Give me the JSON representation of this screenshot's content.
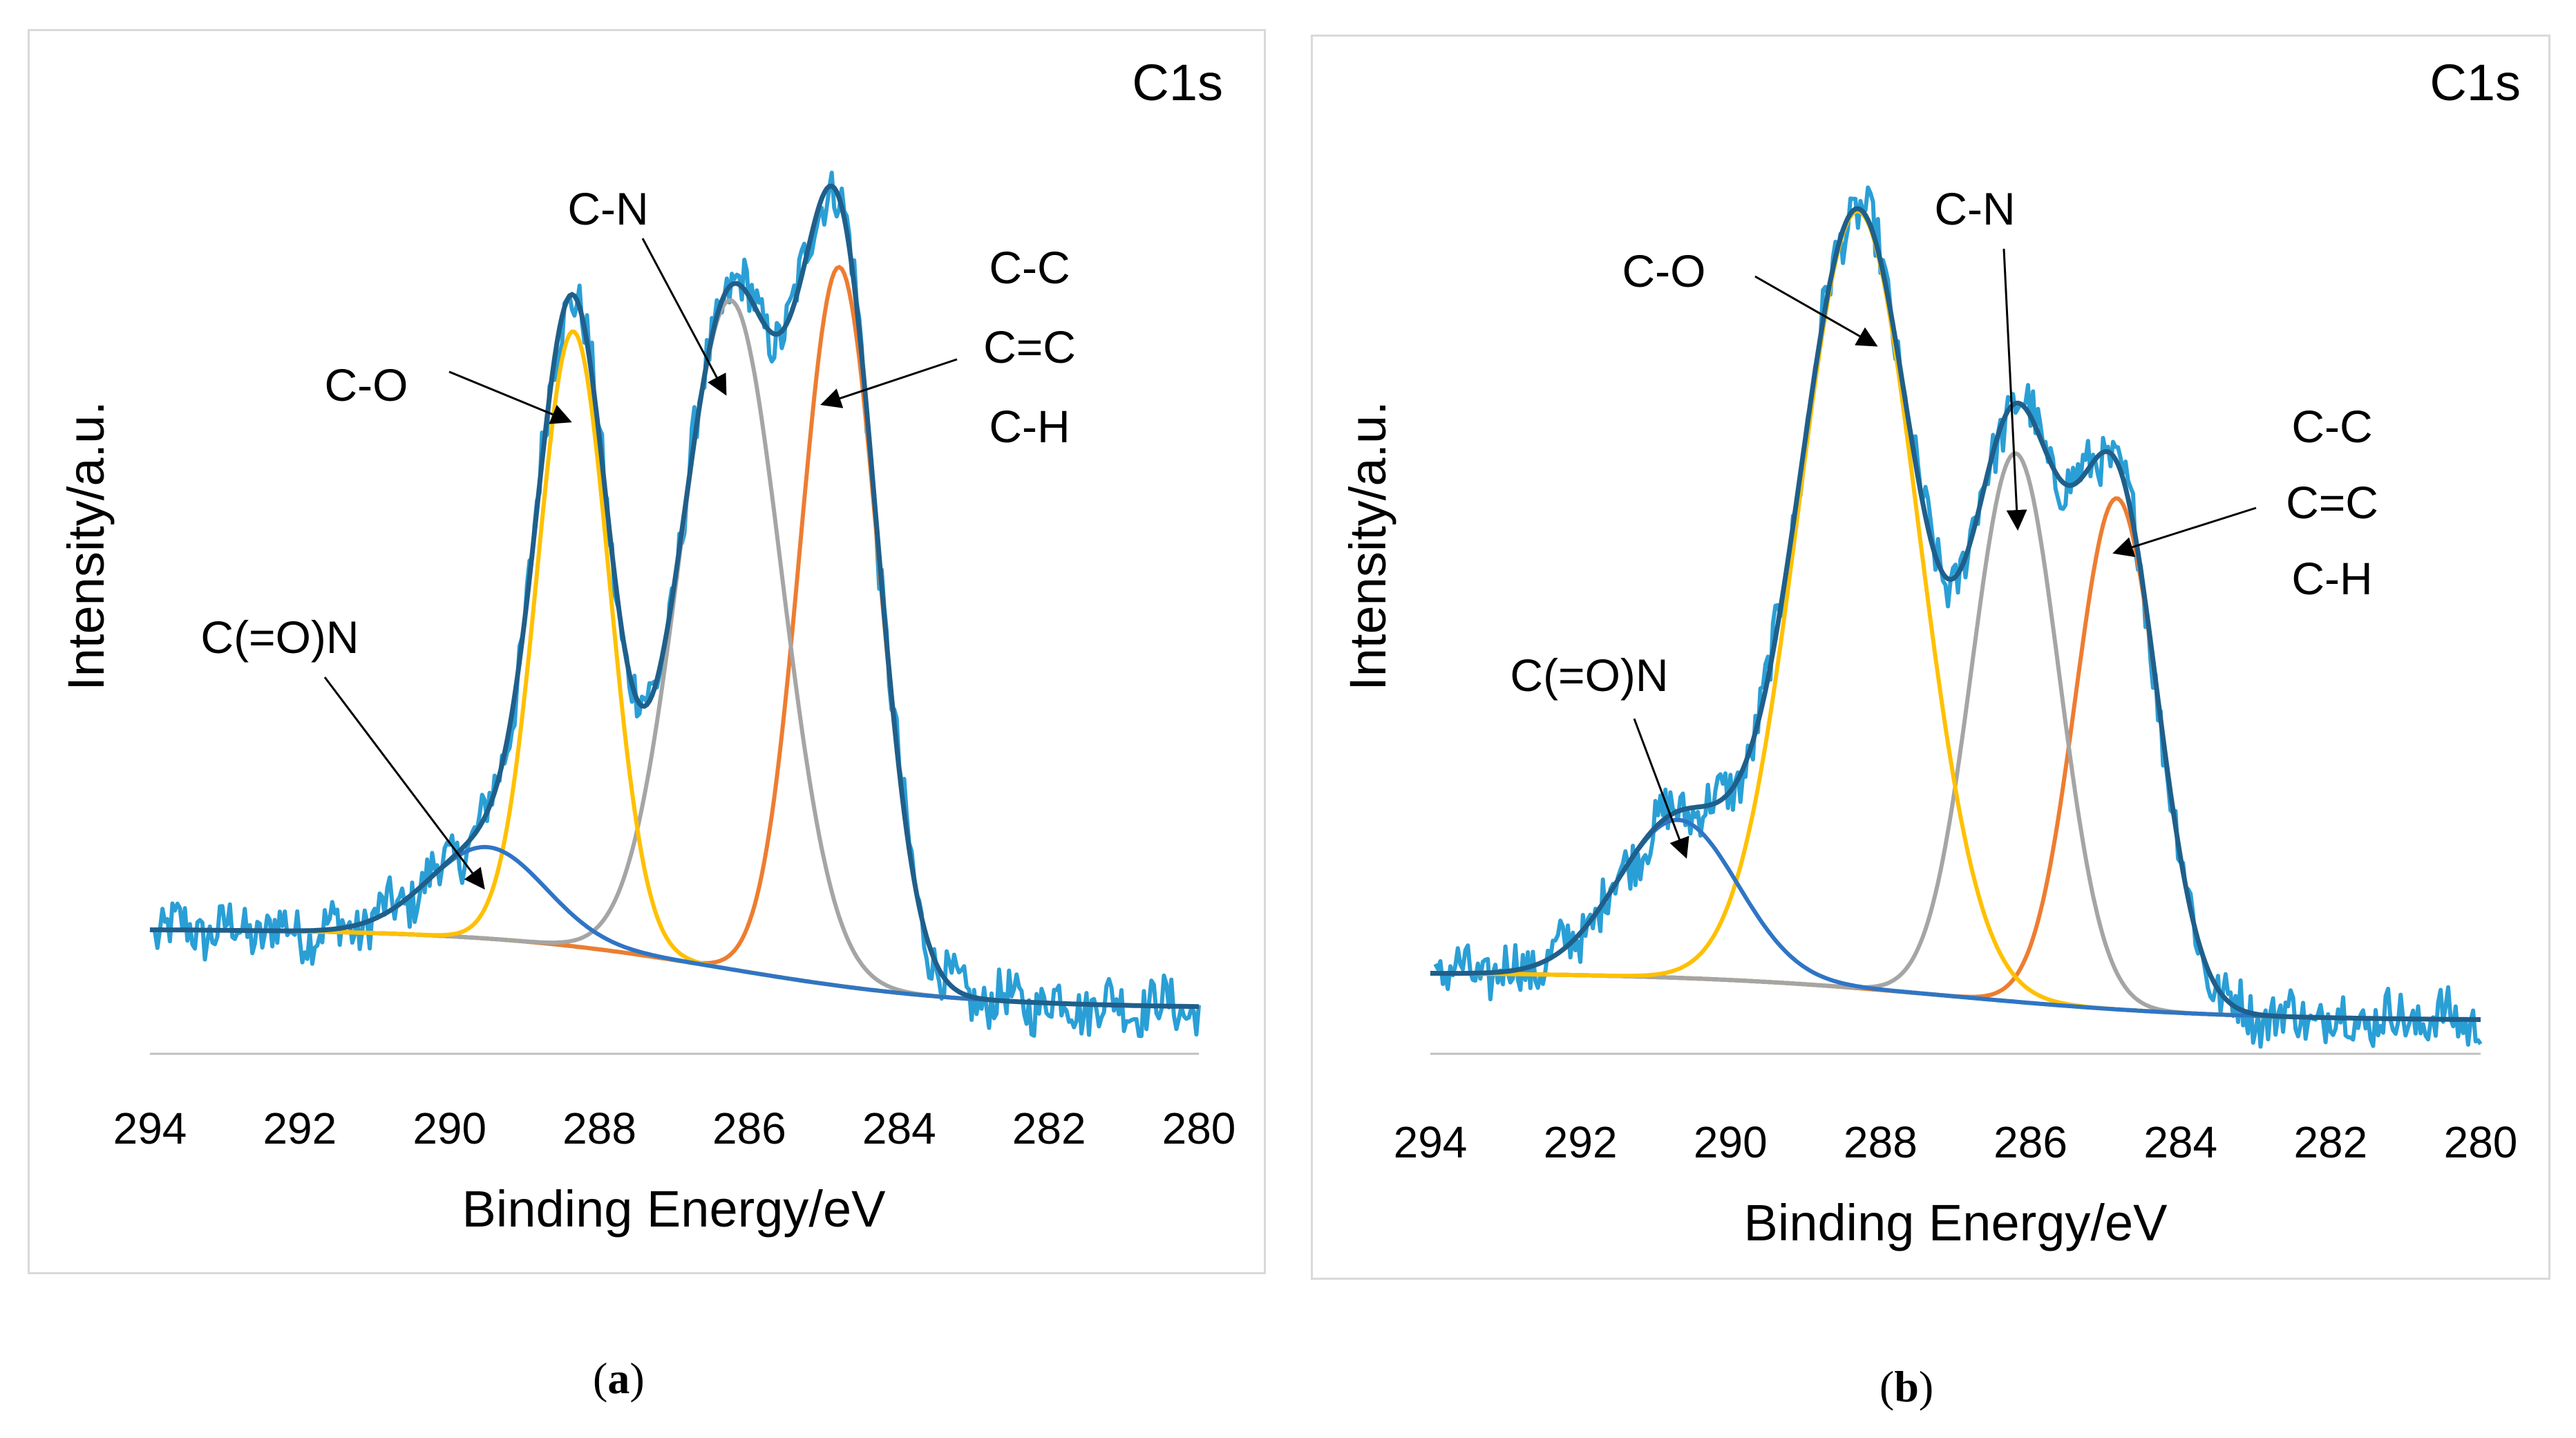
{
  "colors": {
    "raw": "#2a9fd6",
    "envelope": "#1f5f8b",
    "c_c": "#ed7d31",
    "c_n": "#a5a5a5",
    "c_o": "#ffc000",
    "c_o_n": "#2f75c5",
    "background": "#5aa83a",
    "axis": "#bfbfbf"
  },
  "chart_data": [
    {
      "type": "line",
      "panel": "a",
      "caption": "a",
      "title": "C1s",
      "xlabel": "Binding Energy/eV",
      "ylabel": "Intensity/a.u.",
      "x_ticks": [
        294,
        292,
        290,
        288,
        286,
        284,
        282,
        280
      ],
      "xlim": [
        294,
        280
      ],
      "x_reversed": true,
      "ylim": [
        0,
        1.16
      ],
      "baseline": {
        "left": 0.15,
        "right": 0.055,
        "center": 286.3,
        "width": 1.6
      },
      "peaks": [
        {
          "name": "C-C / C=C / C-H",
          "color_key": "c_c",
          "center": 284.8,
          "amplitude": 0.865,
          "sigma": 0.52
        },
        {
          "name": "C-N",
          "color_key": "c_n",
          "center": 286.25,
          "amplitude": 0.805,
          "sigma": 0.68
        },
        {
          "name": "C-O",
          "color_key": "c_o",
          "center": 288.35,
          "amplitude": 0.74,
          "sigma": 0.48
        },
        {
          "name": "C(=O)N",
          "color_key": "c_o_n",
          "center": 289.5,
          "amplitude": 0.11,
          "sigma": 0.78
        }
      ],
      "annotations": [
        {
          "lines": [
            "C-O"
          ],
          "peak": "C-O"
        },
        {
          "lines": [
            "C-N"
          ],
          "peak": "C-N"
        },
        {
          "lines": [
            "C-C",
            "C=C",
            "C-H"
          ],
          "peak": "C-C / C=C / C-H"
        },
        {
          "lines": [
            "C(=O)N"
          ],
          "peak": "C(=O)N"
        }
      ]
    },
    {
      "type": "line",
      "panel": "b",
      "caption": "b",
      "title": "C1s",
      "xlabel": "Binding Energy/eV",
      "ylabel": "Intensity/a.u.",
      "x_ticks": [
        294,
        292,
        290,
        288,
        286,
        284,
        282,
        280
      ],
      "xlim": [
        294,
        280
      ],
      "x_reversed": true,
      "ylim": [
        0,
        1.16
      ],
      "baseline": {
        "left": 0.098,
        "right": 0.04,
        "center": 287.0,
        "width": 1.8
      },
      "peaks": [
        {
          "name": "C-C / C=C / C-H",
          "color_key": "c_c",
          "center": 284.85,
          "amplitude": 0.615,
          "sigma": 0.55
        },
        {
          "name": "C-N",
          "color_key": "c_n",
          "center": 286.2,
          "amplitude": 0.66,
          "sigma": 0.58
        },
        {
          "name": "C-O",
          "color_key": "c_o",
          "center": 288.3,
          "amplitude": 0.935,
          "sigma": 0.8
        },
        {
          "name": "C(=O)N",
          "color_key": "c_o_n",
          "center": 290.7,
          "amplitude": 0.19,
          "sigma": 0.8
        }
      ],
      "annotations": [
        {
          "lines": [
            "C-O"
          ],
          "peak": "C-O"
        },
        {
          "lines": [
            "C-N"
          ],
          "peak": "C-N"
        },
        {
          "lines": [
            "C-C",
            "C=C",
            "C-H"
          ],
          "peak": "C-C / C=C / C-H"
        },
        {
          "lines": [
            "C(=O)N"
          ],
          "peak": "C(=O)N"
        }
      ]
    }
  ]
}
